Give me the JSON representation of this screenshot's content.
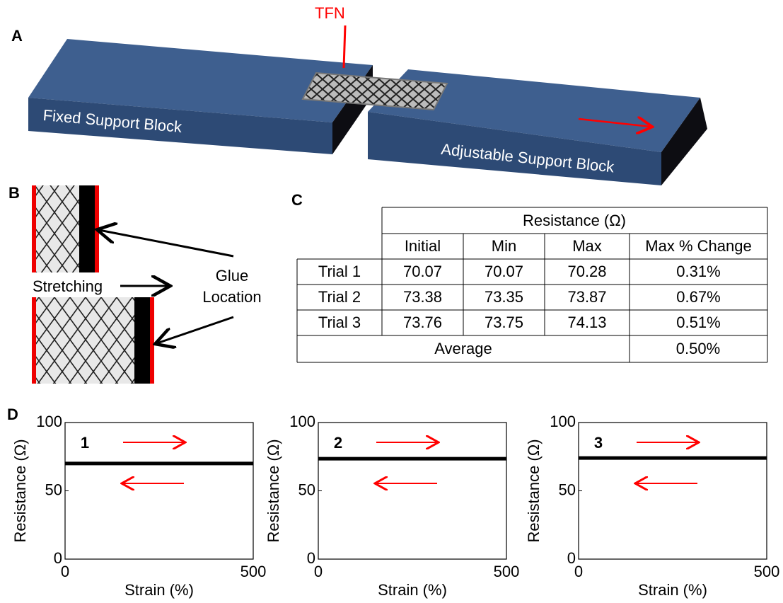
{
  "panels": {
    "a": "A",
    "b": "B",
    "c": "C",
    "d": "D"
  },
  "diagram_a": {
    "tfn": "TFN",
    "fixed_block": "Fixed Support Block",
    "adjustable_block": "Adjustable Support Block"
  },
  "diagram_b": {
    "stretching": "Stretching",
    "glue": "Glue Location"
  },
  "table": {
    "header": "Resistance (Ω)",
    "columns": [
      "Initial",
      "Min",
      "Max",
      "Max % Change"
    ],
    "rows": [
      [
        "Trial 1",
        "70.07",
        "70.07",
        "70.28",
        "0.31%"
      ],
      [
        "Trial 2",
        "73.38",
        "73.35",
        "73.87",
        "0.67%"
      ],
      [
        "Trial 3",
        "73.76",
        "73.75",
        "74.13",
        "0.51%"
      ]
    ],
    "average": [
      "Average",
      "0.50%"
    ]
  },
  "chart_data": [
    {
      "type": "line",
      "title": "1",
      "xlabel": "Strain (%)",
      "ylabel": "Resistance (Ω)",
      "x": [
        0,
        500
      ],
      "values": [
        70,
        70
      ],
      "color": "#000000",
      "xlim": [
        0,
        500
      ],
      "xticks": [
        0,
        500
      ],
      "ylim": [
        0,
        100
      ],
      "yticks": [
        0,
        50,
        100
      ]
    },
    {
      "type": "line",
      "title": "2",
      "xlabel": "Strain (%)",
      "ylabel": "Resistance (Ω)",
      "x": [
        0,
        500
      ],
      "values": [
        73.5,
        73.5
      ],
      "color": "#000000",
      "xlim": [
        0,
        500
      ],
      "xticks": [
        0,
        500
      ],
      "ylim": [
        0,
        100
      ],
      "yticks": [
        0,
        50,
        100
      ]
    },
    {
      "type": "line",
      "title": "3",
      "xlabel": "Strain (%)",
      "ylabel": "Resistance (Ω)",
      "x": [
        0,
        500
      ],
      "values": [
        74,
        74
      ],
      "color": "#000000",
      "xlim": [
        0,
        500
      ],
      "xticks": [
        0,
        500
      ],
      "ylim": [
        0,
        100
      ],
      "yticks": [
        0,
        50,
        100
      ]
    }
  ]
}
